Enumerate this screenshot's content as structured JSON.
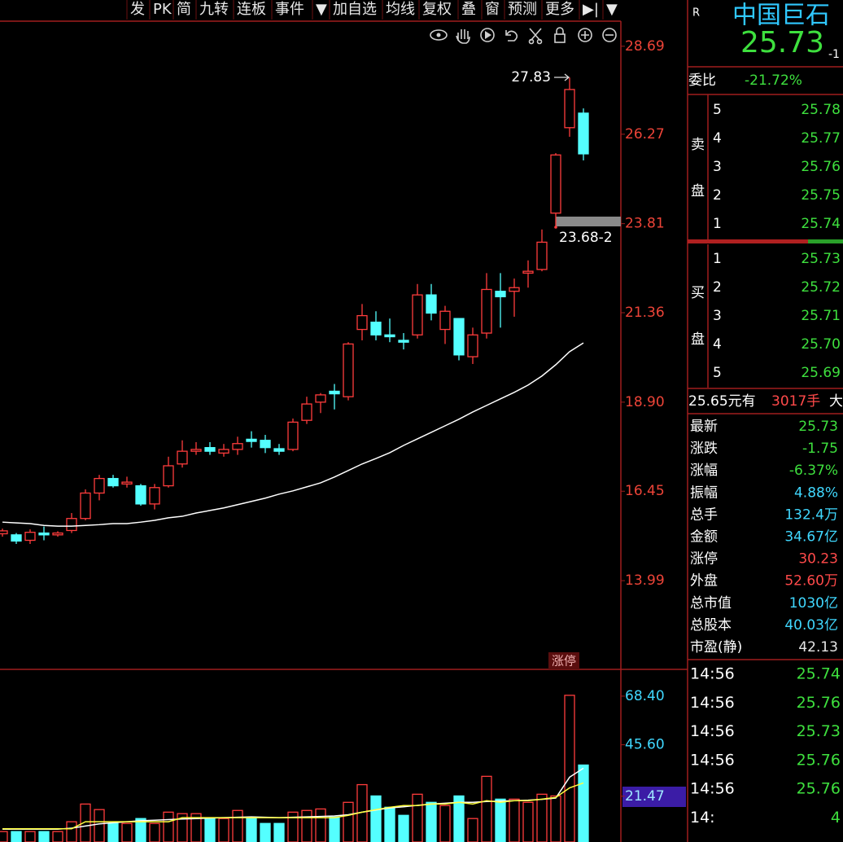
{
  "toolbar": [
    "发",
    "PK",
    "简",
    "九转",
    "连板",
    "事件",
    "▼",
    "加自选",
    "均线",
    "复权",
    "叠",
    "窗",
    "预测",
    "更多",
    "▶|",
    "▼"
  ],
  "quote": {
    "flag": "R",
    "name": "中国巨石",
    "price": "25.73",
    "change_cut": "-1",
    "weibi": {
      "label": "委比",
      "value": "-21.72%"
    },
    "sell": {
      "label": [
        "卖",
        "盘"
      ],
      "levels": [
        {
          "level": "5",
          "price": "25.78"
        },
        {
          "level": "4",
          "price": "25.77"
        },
        {
          "level": "3",
          "price": "25.76"
        },
        {
          "level": "2",
          "price": "25.75"
        },
        {
          "level": "1",
          "price": "25.74"
        }
      ]
    },
    "buy": {
      "label": [
        "买",
        "盘"
      ],
      "levels": [
        {
          "level": "1",
          "price": "25.73"
        },
        {
          "level": "2",
          "price": "25.72"
        },
        {
          "level": "3",
          "price": "25.71"
        },
        {
          "level": "4",
          "price": "25.70"
        },
        {
          "level": "5",
          "price": "25.69"
        }
      ]
    },
    "trade_line": [
      "25.65元有",
      "3017手",
      "大"
    ],
    "stats": [
      {
        "label": "最新",
        "value": "25.73"
      },
      {
        "label": "涨跌",
        "value": "-1.75"
      },
      {
        "label": "涨幅",
        "value": "-6.37%"
      },
      {
        "label": "振幅",
        "value": "4.88%"
      },
      {
        "label": "总手",
        "value": "132.4万"
      },
      {
        "label": "金额",
        "value": "34.67亿"
      },
      {
        "label": "涨停",
        "value": "30.23"
      },
      {
        "label": "外盘",
        "value": "52.60万"
      },
      {
        "label": "总市值",
        "value": "1030亿"
      },
      {
        "label": "总股本",
        "value": "40.03亿"
      },
      {
        "label": "市盈(静)",
        "value": "42.13"
      }
    ],
    "ticks": [
      {
        "time": "14:56",
        "price": "25.74"
      },
      {
        "time": "14:56",
        "price": "25.76"
      },
      {
        "time": "14:56",
        "price": "25.73"
      },
      {
        "time": "14:56",
        "price": "25.76"
      },
      {
        "time": "14:56",
        "price": "25.76"
      },
      {
        "time": "14:",
        "price": "4"
      }
    ]
  },
  "chart_data": {
    "type": "candlestick",
    "open": [
      15.28,
      15.25,
      15.1,
      15.3,
      15.25,
      15.37,
      15.7,
      16.4,
      16.8,
      16.65,
      16.6,
      16.1,
      16.6,
      17.2,
      17.55,
      17.65,
      17.5,
      17.6,
      17.88,
      17.85,
      17.62,
      17.6,
      18.4,
      18.9,
      19.2,
      19.05,
      20.9,
      21.1,
      20.75,
      20.6,
      20.75,
      21.85,
      20.9,
      21.2,
      20.15,
      20.8,
      21.95,
      21.95,
      22.45,
      22.55,
      24.1,
      26.45,
      26.85
    ],
    "high": [
      15.42,
      15.3,
      15.4,
      15.48,
      15.35,
      15.85,
      16.5,
      16.9,
      16.9,
      16.85,
      16.65,
      16.65,
      17.4,
      17.85,
      17.8,
      17.8,
      17.75,
      17.95,
      18.1,
      18.0,
      17.75,
      18.45,
      19.05,
      19.15,
      19.4,
      20.55,
      21.6,
      21.4,
      21.2,
      20.8,
      22.15,
      22.15,
      21.55,
      21.2,
      20.95,
      22.45,
      22.45,
      22.3,
      22.8,
      23.65,
      25.75,
      27.83,
      26.98
    ],
    "low": [
      15.2,
      15.0,
      15.0,
      15.1,
      15.2,
      15.3,
      15.65,
      16.2,
      16.55,
      16.55,
      16.05,
      15.95,
      16.55,
      17.1,
      17.45,
      17.45,
      17.4,
      17.45,
      17.65,
      17.5,
      17.45,
      17.55,
      18.3,
      18.6,
      18.7,
      18.95,
      20.6,
      20.6,
      20.55,
      20.35,
      20.65,
      21.15,
      20.5,
      20.05,
      19.95,
      20.65,
      20.95,
      21.25,
      22.05,
      22.5,
      23.68,
      26.2,
      25.55
    ],
    "close": [
      15.36,
      15.08,
      15.32,
      15.25,
      15.3,
      15.7,
      16.4,
      16.8,
      16.6,
      16.7,
      16.1,
      16.55,
      17.15,
      17.55,
      17.6,
      17.55,
      17.6,
      17.76,
      17.82,
      17.65,
      17.55,
      18.35,
      18.85,
      19.1,
      19.13,
      20.5,
      21.28,
      20.75,
      20.7,
      20.55,
      21.85,
      21.35,
      21.4,
      20.2,
      20.75,
      22.0,
      21.8,
      22.05,
      22.5,
      23.3,
      25.7,
      27.5,
      25.73
    ],
    "ma": [
      15.6,
      15.58,
      15.56,
      15.51,
      15.49,
      15.49,
      15.51,
      15.53,
      15.56,
      15.56,
      15.6,
      15.65,
      15.72,
      15.76,
      15.85,
      15.92,
      15.99,
      16.08,
      16.17,
      16.26,
      16.37,
      16.46,
      16.57,
      16.68,
      16.84,
      17.02,
      17.2,
      17.35,
      17.51,
      17.71,
      17.89,
      18.07,
      18.25,
      18.43,
      18.63,
      18.81,
      18.99,
      19.17,
      19.37,
      19.62,
      19.93,
      20.29,
      20.53
    ],
    "ylim": [
      11.55,
      29.29
    ],
    "yticks": [
      28.69,
      26.27,
      23.81,
      21.36,
      {
        "value": 18.9,
        "label": "18.90"
      },
      16.45,
      13.99
    ],
    "annotations": {
      "high": "27.83",
      "range": "23.68-2",
      "limit_up": "涨停"
    },
    "volume": {
      "values": [
        4.9,
        4.9,
        4.9,
        4.9,
        4.9,
        9.5,
        17.8,
        15.2,
        8.7,
        8.7,
        11.0,
        8.7,
        14.0,
        13.3,
        13.3,
        11.0,
        11.0,
        14.8,
        11.0,
        8.7,
        8.7,
        14.0,
        14.8,
        15.5,
        11.7,
        18.6,
        26.9,
        21.6,
        16.3,
        12.5,
        22.4,
        18.6,
        17.1,
        21.6,
        11.0,
        30.8,
        20.1,
        20.1,
        18.6,
        22.4,
        21.6,
        68.8,
        36.1
      ],
      "ma5": [
        6.2,
        6.2,
        6.2,
        6.2,
        6.2,
        6.2,
        9.5,
        9.5,
        9.5,
        9.5,
        9.5,
        9.5,
        9.5,
        11.4,
        11.4,
        11.4,
        11.4,
        11.4,
        11.4,
        11.4,
        11.4,
        11.4,
        11.4,
        11.4,
        11.4,
        12.5,
        14.0,
        15.2,
        16.3,
        17.1,
        17.1,
        17.8,
        17.8,
        18.6,
        17.8,
        19.4,
        18.6,
        19.4,
        19.4,
        20.1,
        20.9,
        25.4,
        27.7
      ],
      "ma10": [
        6.0,
        6.0,
        6.0,
        6.0,
        6.0,
        6.5,
        7.5,
        8.5,
        9.0,
        9.5,
        10.0,
        10.2,
        10.5,
        10.8,
        11.0,
        11.2,
        11.4,
        11.6,
        11.8,
        11.6,
        11.4,
        11.6,
        11.8,
        12.0,
        12.2,
        12.8,
        14.0,
        15.0,
        16.0,
        16.5,
        17.2,
        17.8,
        18.2,
        18.6,
        18.6,
        19.0,
        19.2,
        19.4,
        19.6,
        20.0,
        20.6,
        30.4,
        34.6
      ],
      "ylim": [
        0,
        80.2
      ],
      "yticks": [
        {
          "value": 68.4,
          "label": "68.40"
        },
        {
          "value": 45.6,
          "label": "45.60"
        },
        21.47
      ]
    },
    "up_color": "#ff3c3c",
    "down_color": "#54ffff",
    "ma_color": "#ffffff",
    "vol_ma5_color": "#ffff40",
    "vol_ma10_color": "#ffffff"
  }
}
